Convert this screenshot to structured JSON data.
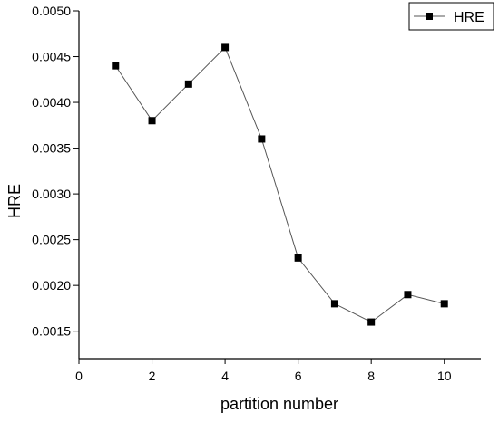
{
  "chart_data": {
    "type": "line",
    "title": "",
    "xlabel": "partition number",
    "ylabel": "HRE",
    "xlim": [
      0,
      11
    ],
    "ylim": [
      0.0012,
      0.005
    ],
    "xticks": [
      0,
      2,
      4,
      6,
      8,
      10
    ],
    "xtick_labels": [
      "0",
      "2",
      "4",
      "6",
      "8",
      "10"
    ],
    "yticks": [
      0.0015,
      0.002,
      0.0025,
      0.003,
      0.0035,
      0.004,
      0.0045,
      0.005
    ],
    "ytick_labels": [
      "0.0015",
      "0.0020",
      "0.0025",
      "0.0030",
      "0.0035",
      "0.0040",
      "0.0045",
      "0.0050"
    ],
    "grid": false,
    "legend_position": "top-right",
    "series": [
      {
        "name": "HRE",
        "color": "#000000",
        "marker": "square",
        "x": [
          1,
          2,
          3,
          4,
          5,
          6,
          7,
          8,
          9,
          10
        ],
        "y": [
          0.0044,
          0.0038,
          0.0042,
          0.0046,
          0.0036,
          0.0023,
          0.0018,
          0.0016,
          0.0019,
          0.0018
        ]
      }
    ]
  }
}
